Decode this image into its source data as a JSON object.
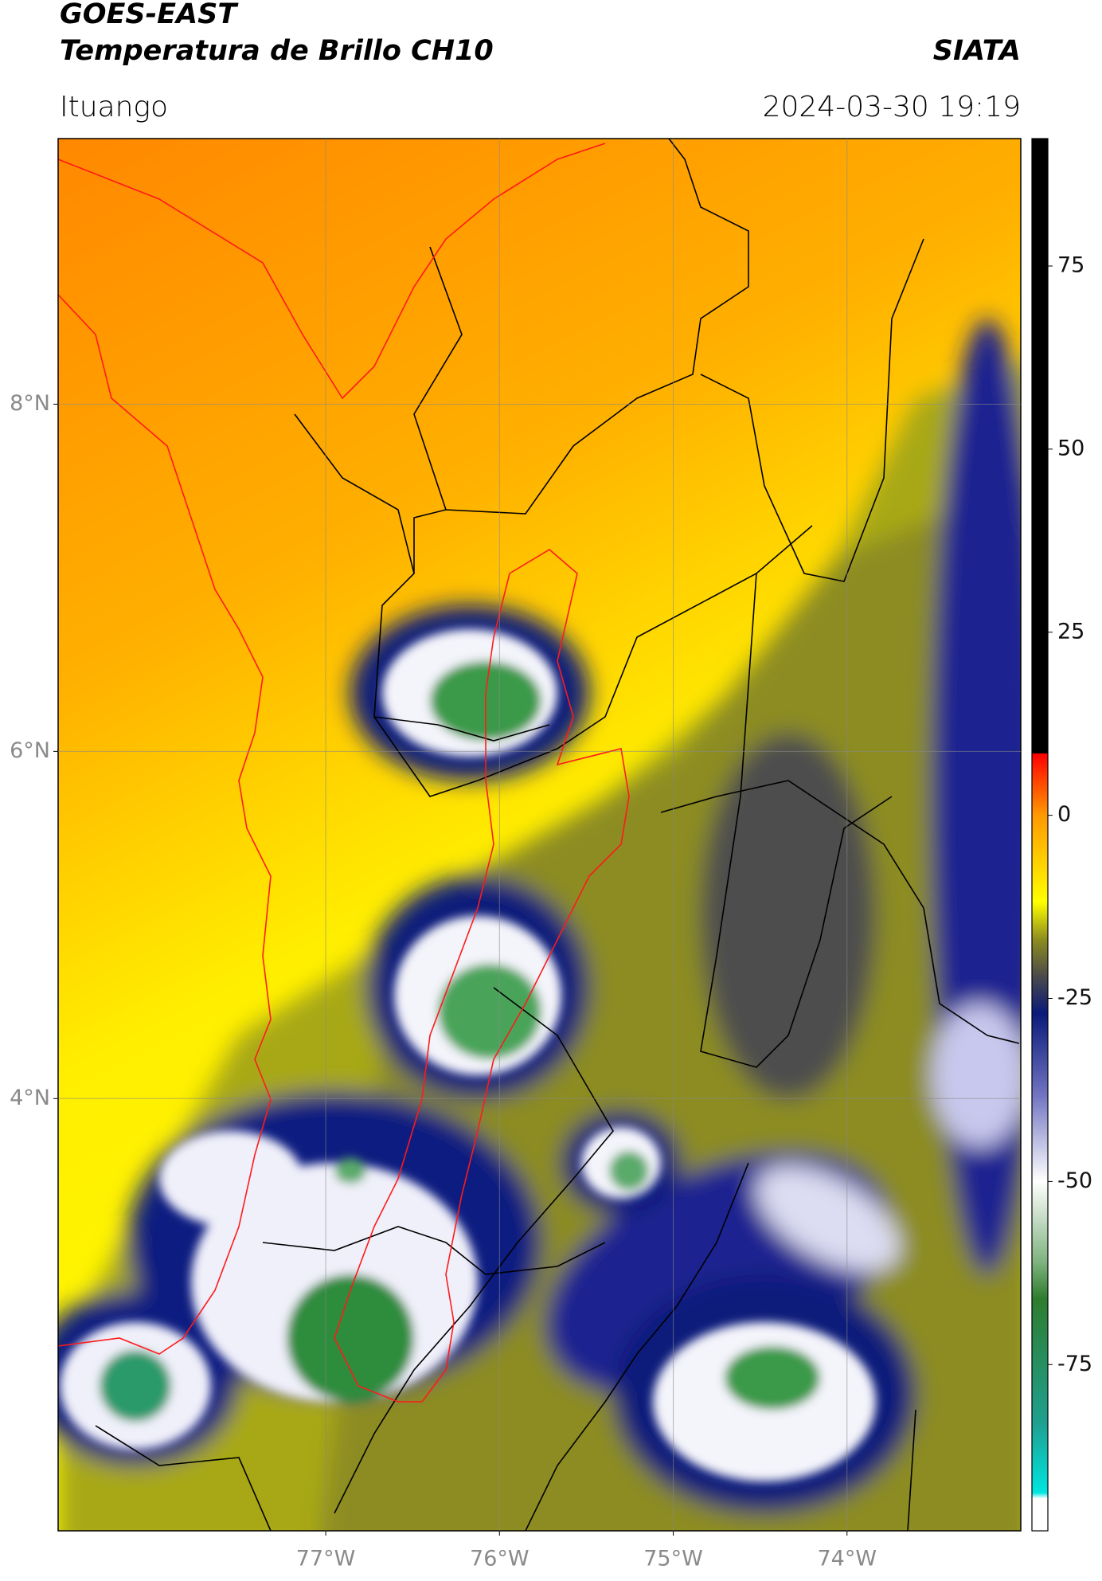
{
  "header": {
    "title": "GOES-EAST",
    "subtitle": "Temperatura de Brillo CH10",
    "source": "SIATA",
    "location": "Ituango",
    "datetime": "2024-03-30 19:19"
  },
  "map": {
    "xlim": [
      -78.54,
      -73.0
    ],
    "ylim": [
      1.51,
      9.53
    ],
    "grid": true,
    "xticks": [
      {
        "value": -77,
        "label": "77°W"
      },
      {
        "value": -76,
        "label": "76°W"
      },
      {
        "value": -75,
        "label": "75°W"
      },
      {
        "value": -74,
        "label": "74°W"
      }
    ],
    "yticks": [
      {
        "value": 8,
        "label": "8°N"
      },
      {
        "value": 6,
        "label": "6°N"
      },
      {
        "value": 4,
        "label": "4°N"
      }
    ]
  },
  "colorbar": {
    "lim": [
      -97.7,
      92.4
    ],
    "ticks": [
      75,
      50,
      25,
      0,
      -25,
      -50,
      -75
    ],
    "stops": [
      {
        "value": -97.7,
        "color": "#ffffff"
      },
      {
        "value": -93.3,
        "color": "#ffffff"
      },
      {
        "value": -92.5,
        "color": "#00e5e0"
      },
      {
        "value": -83,
        "color": "#1fa090"
      },
      {
        "value": -66,
        "color": "#2e7d2e"
      },
      {
        "value": -61,
        "color": "#7fb37f"
      },
      {
        "value": -50,
        "color": "#ffffff"
      },
      {
        "value": -38,
        "color": "#6e72c0"
      },
      {
        "value": -27,
        "color": "#0a1a7a"
      },
      {
        "value": -22,
        "color": "#4a4a4a"
      },
      {
        "value": -17,
        "color": "#8c8c20"
      },
      {
        "value": -11.8,
        "color": "#ffff00"
      },
      {
        "value": 0,
        "color": "#ff9900"
      },
      {
        "value": 8.4,
        "color": "#ff0000"
      },
      {
        "value": 8.5,
        "color": "#000000"
      },
      {
        "value": 92.4,
        "color": "#000000"
      }
    ]
  }
}
